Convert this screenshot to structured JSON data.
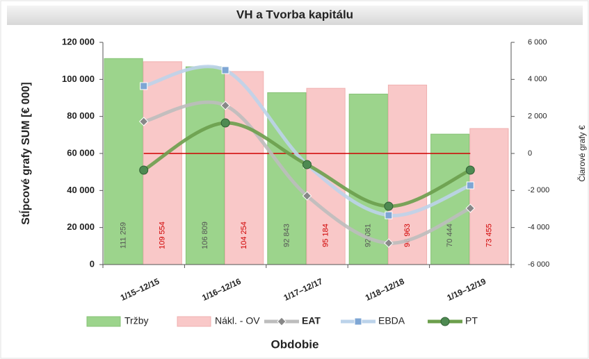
{
  "chart_data": {
    "type": "combo",
    "title": "VH a Tvorba kapitálu",
    "x_label": "Obdobie",
    "y_label": "Stĺpcové grafy SUM [€ 000]",
    "y2_label": "Čiarové grafy €",
    "categories": [
      "1/15–12/15",
      "1/16–12/16",
      "1/17–12/17",
      "1/18–12/18",
      "1/19–12/19"
    ],
    "ylim": [
      0,
      120000
    ],
    "yticks": [
      0,
      {
        "value": 20000,
        "label": "20 000"
      },
      {
        "value": 40000,
        "label": "40 000"
      },
      {
        "value": 60000,
        "label": "60 000"
      },
      {
        "value": 80000,
        "label": "80 000"
      },
      {
        "value": 100000,
        "label": "100 000"
      },
      {
        "value": 120000,
        "label": "120 000"
      }
    ],
    "y2lim": [
      -6000,
      6000
    ],
    "y2ticks": [
      {
        "value": -6000,
        "label": "-6 000"
      },
      {
        "value": -4000,
        "label": "-4 000"
      },
      {
        "value": -2000,
        "label": "-2 000"
      },
      0,
      {
        "value": 2000,
        "label": "2 000"
      },
      {
        "value": 4000,
        "label": "4 000"
      },
      {
        "value": 6000,
        "label": "6 000"
      }
    ],
    "series": [
      {
        "name": "Tržby",
        "type": "bar",
        "color": "#9cd48c",
        "label_color": "#555",
        "values": [
          111259,
          106809,
          92843,
          92081,
          70444
        ],
        "value_labels": [
          "111 259",
          "106 809",
          "92 843",
          "92 081",
          "70 444"
        ]
      },
      {
        "name": "Nákl. - OV",
        "type": "bar",
        "color": "#f9c8c8",
        "label_color": "#d00000",
        "values": [
          109554,
          104254,
          95184,
          96963,
          73455
        ],
        "value_labels": [
          "109 554",
          "104 254",
          "95 184",
          "96 963",
          "73 455"
        ]
      },
      {
        "name": "EAT",
        "type": "line",
        "axis": "y2",
        "color": "#bdbdbd",
        "marker": "diamond",
        "marker_color": "#888",
        "values": [
          1725,
          2590,
          -2290,
          -4840,
          -2960
        ]
      },
      {
        "name": "EBDA",
        "type": "line",
        "axis": "y2",
        "color": "#bcd3ea",
        "marker": "square",
        "marker_color": "#7ea6d4",
        "values": [
          3640,
          4500,
          -600,
          -3340,
          -1725
        ]
      },
      {
        "name": "PT",
        "type": "line",
        "axis": "y2",
        "color": "#6c9f4c",
        "marker": "circle",
        "marker_color": "#4e8a52",
        "values": [
          -900,
          1650,
          -600,
          -2850,
          -900
        ]
      }
    ]
  }
}
